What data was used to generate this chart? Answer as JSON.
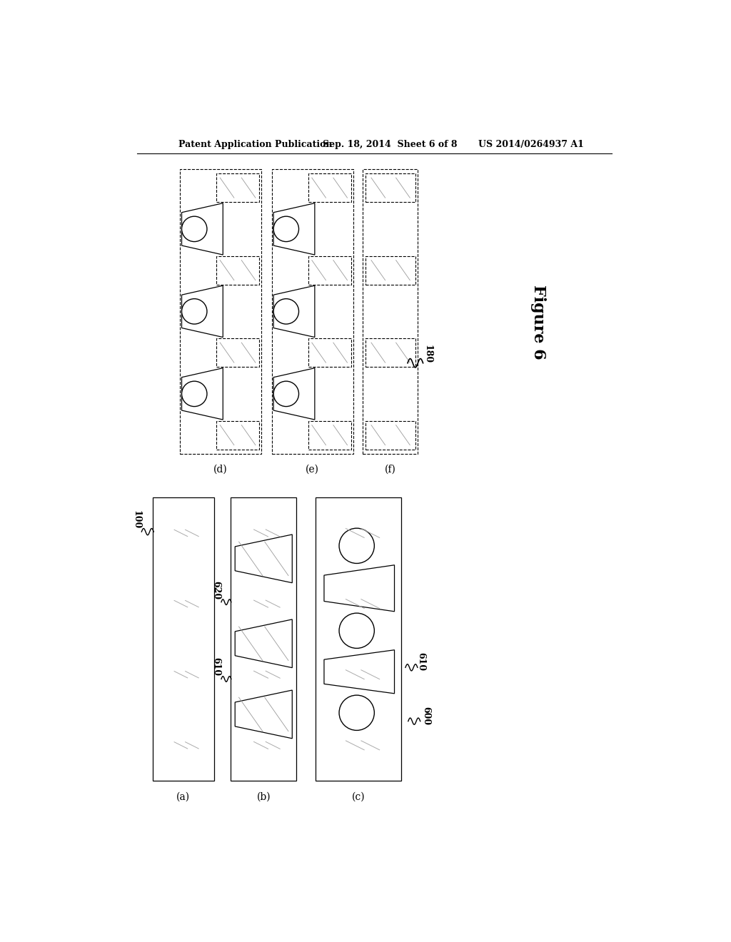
{
  "header_left": "Patent Application Publication",
  "header_mid": "Sep. 18, 2014  Sheet 6 of 8",
  "header_right": "US 2014/0264937 A1",
  "figure_label": "Figure 6",
  "bg_color": "#ffffff",
  "line_color": "#000000",
  "top_labels": [
    "(d)",
    "(e)",
    "(f)"
  ],
  "bot_labels": [
    "(a)",
    "(b)",
    "(c)"
  ],
  "ref_top": [
    "180"
  ],
  "ref_bot": [
    "100",
    "620",
    "610",
    "610",
    "600"
  ]
}
